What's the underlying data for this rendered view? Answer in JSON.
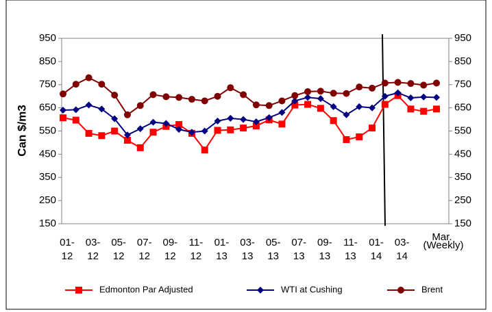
{
  "chart_data": {
    "type": "line",
    "ylabel": "Can $/m3",
    "categories": [
      "01-12",
      null,
      "03-12",
      null,
      "05-12",
      null,
      "07-12",
      null,
      "09-12",
      null,
      "11-12",
      null,
      "01-13",
      null,
      "03-13",
      null,
      "05-13",
      null,
      "07-13",
      null,
      "09-13",
      null,
      "11-13",
      null,
      "01-14",
      null,
      "03-14",
      null,
      null,
      "Mar. (Weekly)"
    ],
    "series": [
      {
        "name": "Edmonton Par Adjusted",
        "color": "#ff0000",
        "marker": "square",
        "values": [
          607,
          597,
          540,
          530,
          550,
          510,
          478,
          545,
          570,
          578,
          540,
          468,
          553,
          555,
          563,
          572,
          598,
          580,
          662,
          665,
          648,
          595,
          513,
          525,
          563,
          665,
          703,
          645,
          635,
          645
        ]
      },
      {
        "name": "WTI at Cushing",
        "color": "#000080",
        "marker": "diamond",
        "values": [
          640,
          642,
          662,
          645,
          603,
          533,
          560,
          588,
          583,
          557,
          545,
          550,
          593,
          605,
          600,
          590,
          608,
          630,
          680,
          695,
          690,
          655,
          620,
          655,
          650,
          700,
          715,
          693,
          697,
          695
        ]
      },
      {
        "name": "Brent",
        "color": "#800000",
        "marker": "circle",
        "values": [
          710,
          752,
          780,
          752,
          705,
          620,
          660,
          707,
          698,
          695,
          687,
          680,
          700,
          737,
          707,
          663,
          660,
          680,
          703,
          720,
          722,
          713,
          712,
          740,
          735,
          757,
          760,
          755,
          748,
          757
        ]
      }
    ],
    "ylim": [
      150,
      950
    ],
    "yticks": [
      150,
      250,
      350,
      450,
      550,
      650,
      750,
      850,
      950
    ],
    "y2lim": [
      150,
      950
    ],
    "y2ticks": [
      150,
      250,
      350,
      450,
      550,
      650,
      750,
      850,
      950
    ],
    "grid": false,
    "legend": "bottom"
  }
}
